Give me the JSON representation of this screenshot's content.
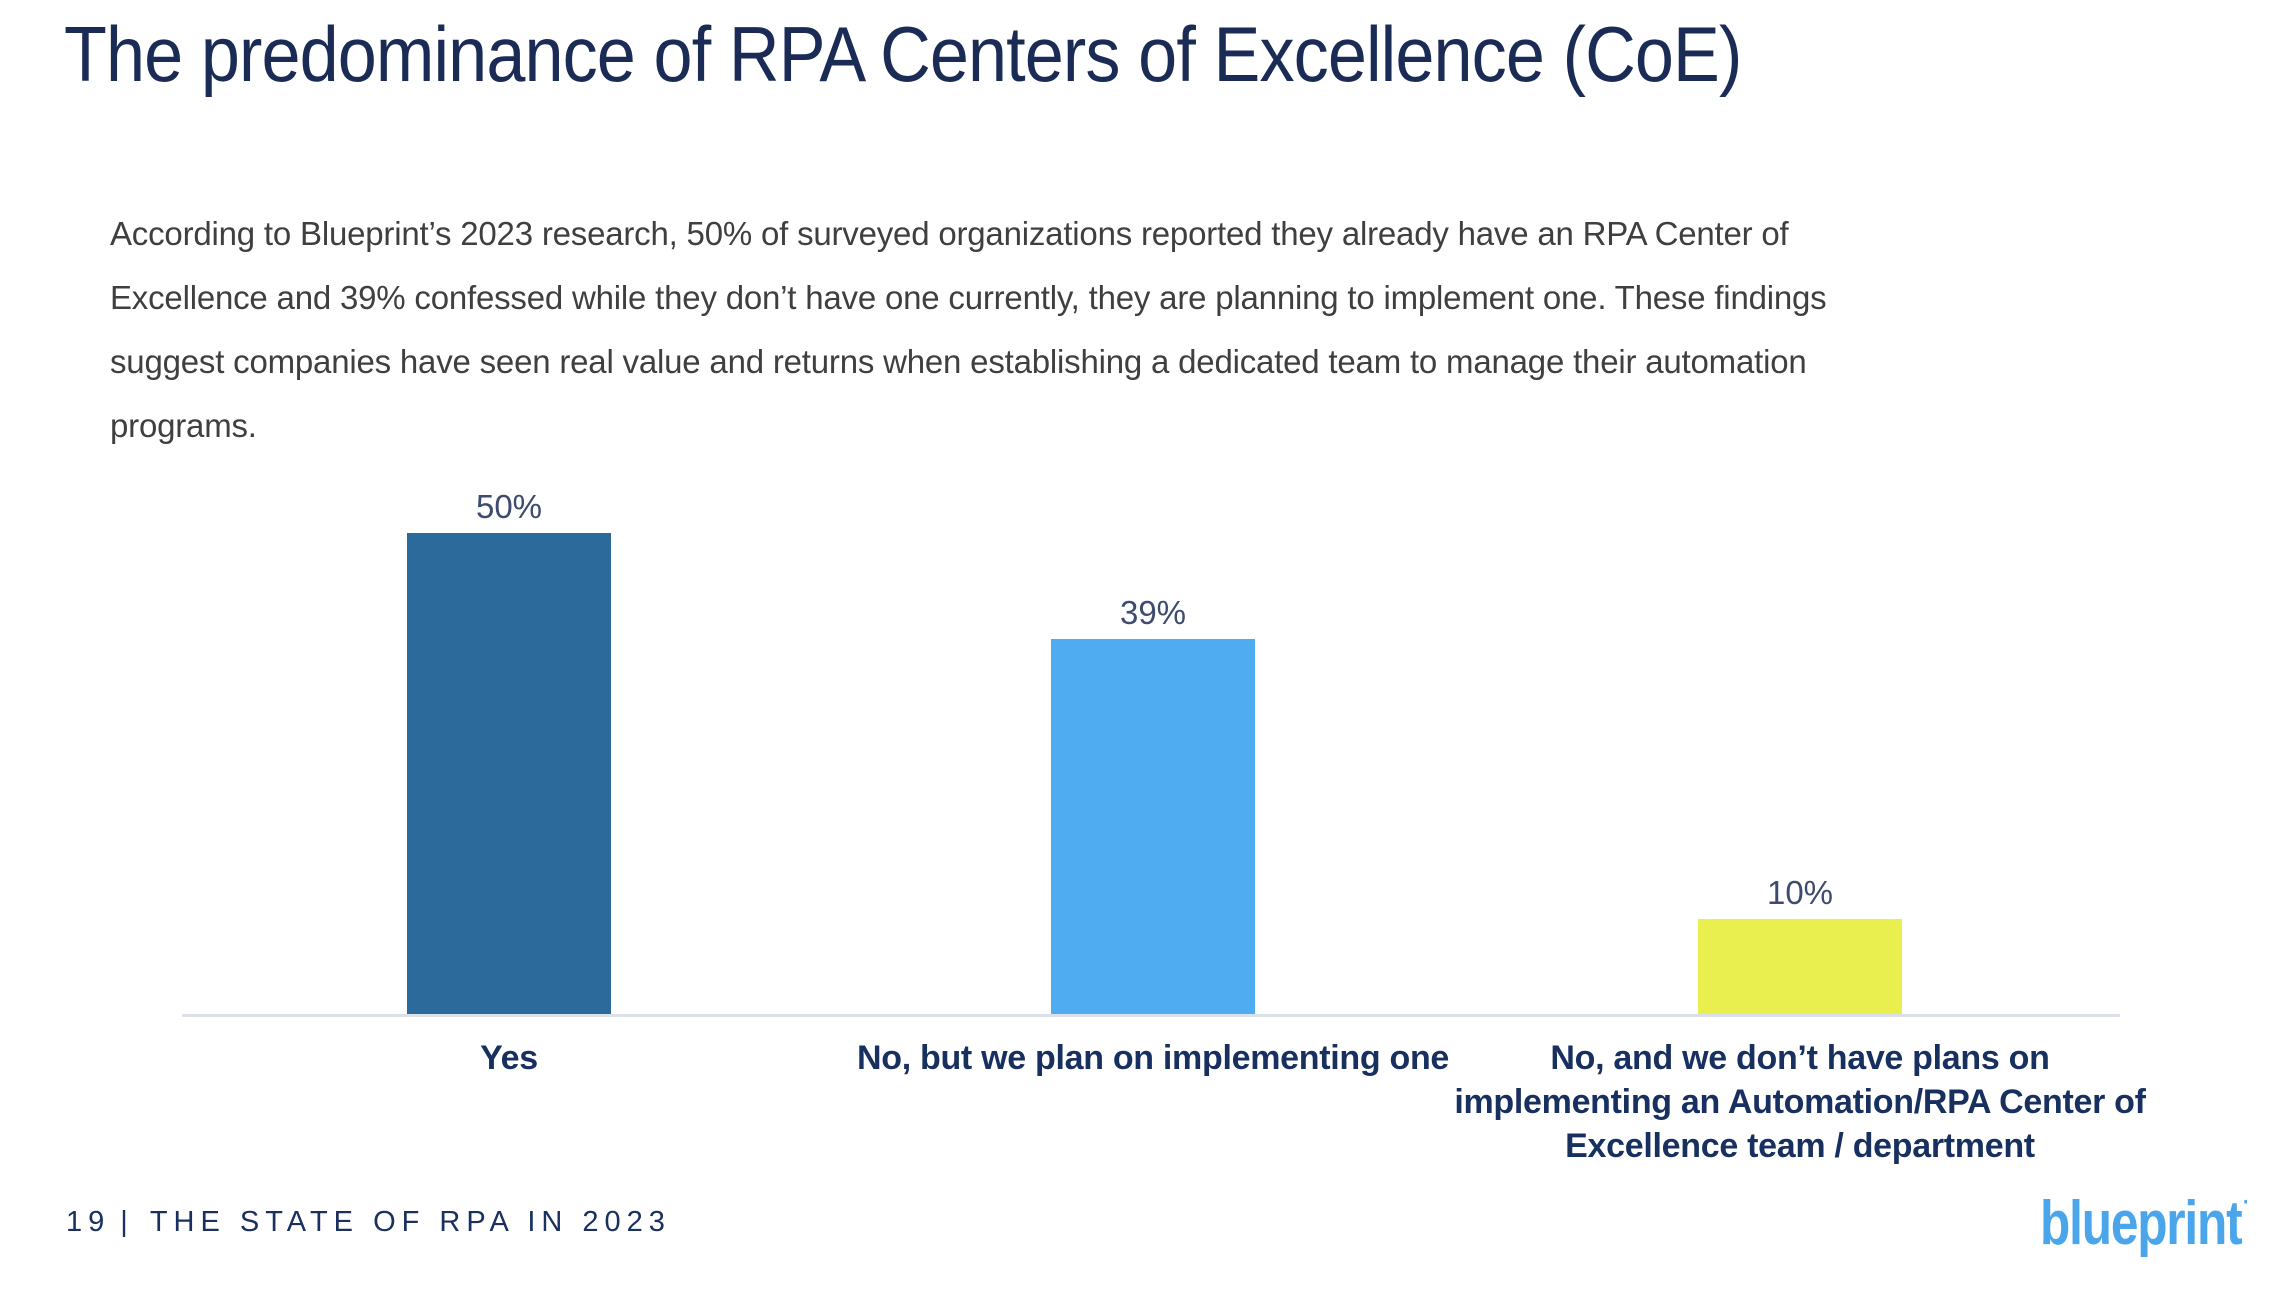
{
  "slide": {
    "title": "The predominance of RPA Centers of Excellence (CoE)",
    "body_lines": [
      "According to Blueprint’s 2023 research, 50% of surveyed organizations reported they already have an RPA Center of",
      "Excellence and 39% confessed while they don’t have one currently, they are planning to implement one. These findings",
      "suggest companies have seen real value and returns when establishing a dedicated team to manage their automation",
      "programs."
    ],
    "footer": {
      "page_number": "19",
      "separator": "|",
      "report_title": "THE STATE OF RPA IN 2023"
    },
    "logo_text": "blueprint",
    "logo_mark": "·"
  },
  "chart_data": {
    "type": "bar",
    "title": "",
    "xlabel": "",
    "ylabel": "",
    "unit": "%",
    "grid": false,
    "legend": "none",
    "ylim": [
      0,
      55
    ],
    "categories": [
      "Yes",
      "No, but we plan on implementing one",
      "No, and we don’t have plans on implementing an Automation/RPA Center of Excellence team / department"
    ],
    "values": [
      50,
      39,
      10
    ],
    "value_labels": [
      "50%",
      "39%",
      "10%"
    ],
    "bar_colors": [
      "#2B6A9B",
      "#4FACF0",
      "#E9EF4F"
    ],
    "category_label_lines": [
      [
        "Yes"
      ],
      [
        "No, but we plan on implementing one"
      ],
      [
        "No, and we don’t have plans on",
        "implementing an Automation/RPA Center of",
        "Excellence team / department"
      ]
    ]
  },
  "colors": {
    "background": "#FFFFFF",
    "title": "#1A2B55",
    "body_text": "#3F3F3F",
    "value_label": "#3D4B70",
    "category_label": "#18305F",
    "axis_line": "#DCE0E8",
    "footer_text": "#1A3160",
    "logo": "#4BA5EA"
  }
}
